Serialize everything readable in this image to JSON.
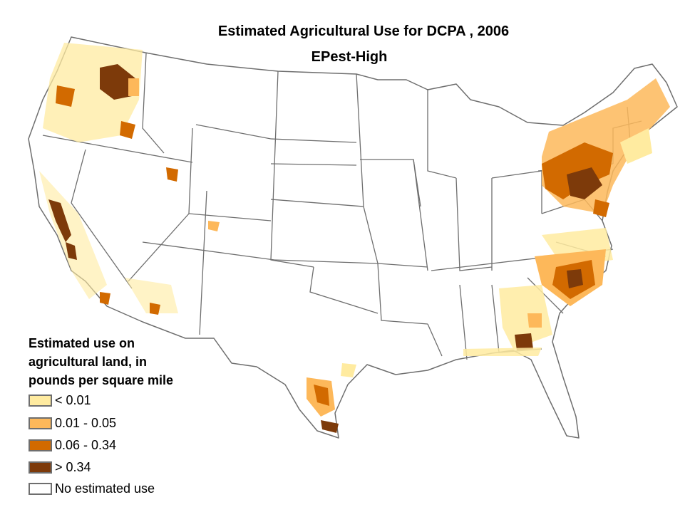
{
  "title": "Estimated Agricultural Use for DCPA , 2006",
  "subtitle": "EPest-High",
  "legend": {
    "title_lines": [
      "Estimated use on",
      "agricultural land, in",
      "pounds per square mile"
    ],
    "items": [
      {
        "label": "< 0.01",
        "color": "#ffeba0"
      },
      {
        "label": "0.01 - 0.05",
        "color": "#fdb85a"
      },
      {
        "label": "0.06 - 0.34",
        "color": "#d26a00"
      },
      {
        "label": "> 0.34",
        "color": "#7d3a0a"
      },
      {
        "label": "No estimated use",
        "color": "#ffffff"
      }
    ]
  },
  "colors": {
    "state_border": "#6e6e6e",
    "class_lt_001": "#ffeba0",
    "class_001_005": "#fdb85a",
    "class_006_034": "#d26a00",
    "class_gt_034": "#7d3a0a"
  }
}
